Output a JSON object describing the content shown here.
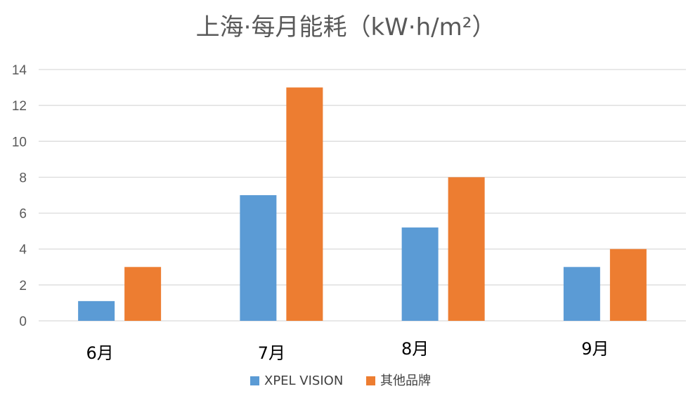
{
  "chart_data": {
    "type": "bar",
    "title": "上海·每月能耗（kW·h/m²）",
    "categories": [
      "6月",
      "7月",
      "8月",
      "9月"
    ],
    "series": [
      {
        "name": "XPEL VISION",
        "color": "#5b9bd5",
        "values": [
          1.1,
          7,
          5.2,
          3
        ]
      },
      {
        "name": "其他品牌",
        "color": "#ed7d31",
        "values": [
          3,
          13,
          8,
          4
        ]
      }
    ],
    "ylim": [
      0,
      14
    ],
    "yticks": [
      0,
      2,
      4,
      6,
      8,
      10,
      12,
      14
    ],
    "grid": true,
    "legend_position": "bottom"
  }
}
